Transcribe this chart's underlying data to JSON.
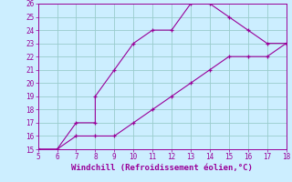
{
  "xlabel": "Windchill (Refroidissement éolien,°C)",
  "line1_x": [
    5,
    6,
    7,
    8,
    8,
    9,
    10,
    11,
    12,
    13,
    14,
    15,
    16,
    17,
    18
  ],
  "line1_y": [
    15,
    15,
    17,
    17,
    19,
    21,
    23,
    24,
    24,
    26,
    26,
    25,
    24,
    23,
    23
  ],
  "line2_x": [
    5,
    6,
    7,
    8,
    9,
    10,
    11,
    12,
    13,
    14,
    15,
    16,
    17,
    18
  ],
  "line2_y": [
    15,
    15,
    16,
    16,
    16,
    17,
    18,
    19,
    20,
    21,
    22,
    22,
    22,
    23
  ],
  "line_color": "#990099",
  "bg_color": "#cceeff",
  "grid_color": "#99cccc",
  "xlim": [
    5,
    18
  ],
  "ylim": [
    15,
    26
  ],
  "xticks": [
    5,
    6,
    7,
    8,
    9,
    10,
    11,
    12,
    13,
    14,
    15,
    16,
    17,
    18
  ],
  "yticks": [
    15,
    16,
    17,
    18,
    19,
    20,
    21,
    22,
    23,
    24,
    25,
    26
  ],
  "tick_fontsize": 5.5,
  "xlabel_fontsize": 6.5,
  "marker": "+"
}
